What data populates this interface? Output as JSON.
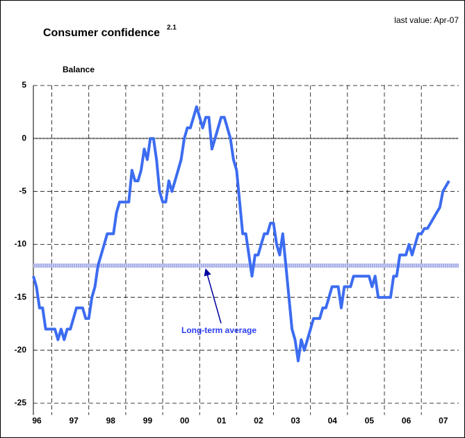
{
  "chart_data": {
    "type": "line",
    "title": "Consumer confidence",
    "title_superscript": "2.1",
    "subtitle": "last value: Apr-07",
    "y_label": "Balance",
    "categories": [
      "96",
      null,
      null,
      null,
      null,
      null,
      null,
      null,
      null,
      null,
      null,
      null,
      "97",
      null,
      null,
      null,
      null,
      null,
      null,
      null,
      null,
      null,
      null,
      null,
      "98",
      null,
      null,
      null,
      null,
      null,
      null,
      null,
      null,
      null,
      null,
      null,
      "99",
      null,
      null,
      null,
      null,
      null,
      null,
      null,
      null,
      null,
      null,
      null,
      "00",
      null,
      null,
      null,
      null,
      null,
      null,
      null,
      null,
      null,
      null,
      null,
      "01",
      null,
      null,
      null,
      null,
      null,
      null,
      null,
      null,
      null,
      null,
      null,
      "02",
      null,
      null,
      null,
      null,
      null,
      null,
      null,
      null,
      null,
      null,
      null,
      "03",
      null,
      null,
      null,
      null,
      null,
      null,
      null,
      null,
      null,
      null,
      null,
      "04",
      null,
      null,
      null,
      null,
      null,
      null,
      null,
      null,
      null,
      null,
      null,
      "05",
      null,
      null,
      null,
      null,
      null,
      null,
      null,
      null,
      null,
      null,
      null,
      "06",
      null,
      null,
      null,
      null,
      null,
      null,
      null,
      null,
      null,
      null,
      null,
      "07",
      null,
      null,
      null
    ],
    "series": [
      {
        "name": "Consumer confidence",
        "color": "#3c6cf0",
        "values": [
          -13,
          -14,
          -16,
          -16,
          -18,
          -18,
          -18,
          -18,
          -19,
          -18,
          -19,
          -18,
          -18,
          -17,
          -16,
          -16,
          -16,
          -17,
          -17,
          -15,
          -14,
          -12,
          -11,
          -10,
          -9,
          -9,
          -9,
          -7,
          -6,
          -6,
          -6,
          -6,
          -3,
          -4,
          -4,
          -3,
          -1,
          -2,
          0,
          0,
          -2,
          -5,
          -6,
          -6,
          -4,
          -5,
          -4,
          -3,
          -2,
          0,
          1,
          1,
          2,
          3,
          2,
          1,
          2,
          2,
          -1,
          0,
          1,
          2,
          2,
          1,
          0,
          -2,
          -3,
          -6,
          -9,
          -9,
          -11,
          -13,
          -11,
          -11,
          -10,
          -9,
          -9,
          -8,
          -8,
          -10,
          -11,
          -9,
          -12,
          -15,
          -18,
          -19,
          -21,
          -19,
          -20,
          -19,
          -18,
          -17,
          -17,
          -17,
          -16,
          -16,
          -15,
          -14,
          -14,
          -14,
          -16,
          -14,
          -14,
          -14,
          -13,
          -13,
          -13,
          -13,
          -13,
          -13,
          -14,
          -13,
          -15,
          -15,
          -15,
          -15,
          -15,
          -13,
          -13,
          -11,
          -11,
          -11,
          -10,
          -11,
          -10,
          -9,
          -9,
          -8.5,
          -8.5,
          -8,
          -7.5,
          -7,
          -6.5,
          -5,
          -4.5,
          -4
        ]
      }
    ],
    "long_term_average": {
      "label": "Long-term average",
      "value": -12,
      "color": "#a8b0e8"
    },
    "ylim": [
      -25,
      5
    ],
    "yticks": [
      -25,
      -20,
      -15,
      -10,
      -5,
      0,
      5
    ],
    "grid": true
  }
}
